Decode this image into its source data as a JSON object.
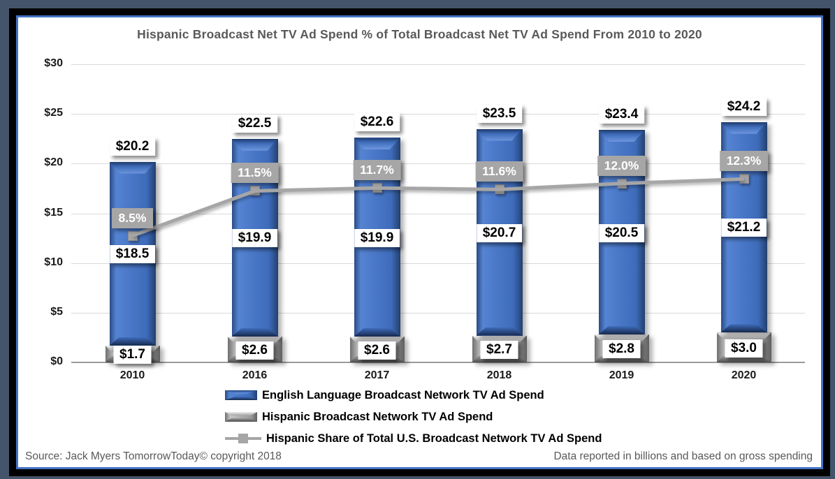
{
  "title": "Hispanic Broadcast Net TV Ad Spend % of Total Broadcast Net TV Ad Spend From 2010 to 2020",
  "footer": {
    "source": "Source: Jack Myers TomorrowToday© copyright 2018",
    "note": "Data reported in billions and based on gross spending"
  },
  "colors": {
    "frame_background": "#44546A",
    "frame_inner": "#000000",
    "surface_border": "#4472C4",
    "bar_english": "#4472C4",
    "bar_hispanic": "#A6A6A6",
    "share_line": "#A6A6A6",
    "gridline": "#D9D9D9",
    "axis_baseline": "#9B9B9B",
    "title_text": "#595959",
    "footer_text": "#595959"
  },
  "chart_data": {
    "type": "bar",
    "subtype": "stacked-bar-with-line-combo",
    "title": "Hispanic Broadcast Net TV Ad Spend % of Total Broadcast Net TV Ad Spend From 2010 to 2020",
    "categories": [
      "2010",
      "2016",
      "2017",
      "2018",
      "2019",
      "2020"
    ],
    "series": [
      {
        "name": "English Language Broadcast Network TV Ad Spend",
        "type": "bar",
        "stack_position": "top",
        "color": "#4472C4",
        "values": [
          18.5,
          19.9,
          19.9,
          20.7,
          20.5,
          21.2
        ],
        "data_labels": [
          "$18.5",
          "$19.9",
          "$19.9",
          "$20.7",
          "$20.5",
          "$21.2"
        ]
      },
      {
        "name": "Hispanic Broadcast Network TV Ad Spend",
        "type": "bar",
        "stack_position": "bottom",
        "color": "#A6A6A6",
        "values": [
          1.7,
          2.6,
          2.6,
          2.7,
          2.8,
          3.0
        ],
        "data_labels": [
          "$1.7",
          "$2.6",
          "$2.6",
          "$2.7",
          "$2.8",
          "$3.0"
        ]
      },
      {
        "name": "Hispanic Share of Total U.S. Broadcast Network TV Ad Spend",
        "type": "line",
        "axis": "secondary",
        "color": "#A6A6A6",
        "values": [
          8.5,
          11.5,
          11.7,
          11.6,
          12.0,
          12.3
        ],
        "data_labels": [
          "8.5%",
          "11.5%",
          "11.7%",
          "11.6%",
          "12.0%",
          "12.3%"
        ]
      }
    ],
    "stack_totals": [
      20.2,
      22.5,
      22.6,
      23.5,
      23.4,
      24.2
    ],
    "stack_total_labels": [
      "$20.2",
      "$22.5",
      "$22.6",
      "$23.5",
      "$23.4",
      "$24.2"
    ],
    "y_axis": {
      "min": 0,
      "max": 30,
      "tick_step": 5,
      "tick_labels_top_to_bottom": [
        "$30",
        "$25",
        "$20",
        "$15",
        "$10",
        "$5",
        "$0"
      ]
    },
    "secondary_axis": {
      "min": 0,
      "max": 20,
      "unit": "%",
      "visible": false
    },
    "gridlines": true,
    "legend_position": "bottom",
    "units_note": "billions USD, gross spending"
  }
}
